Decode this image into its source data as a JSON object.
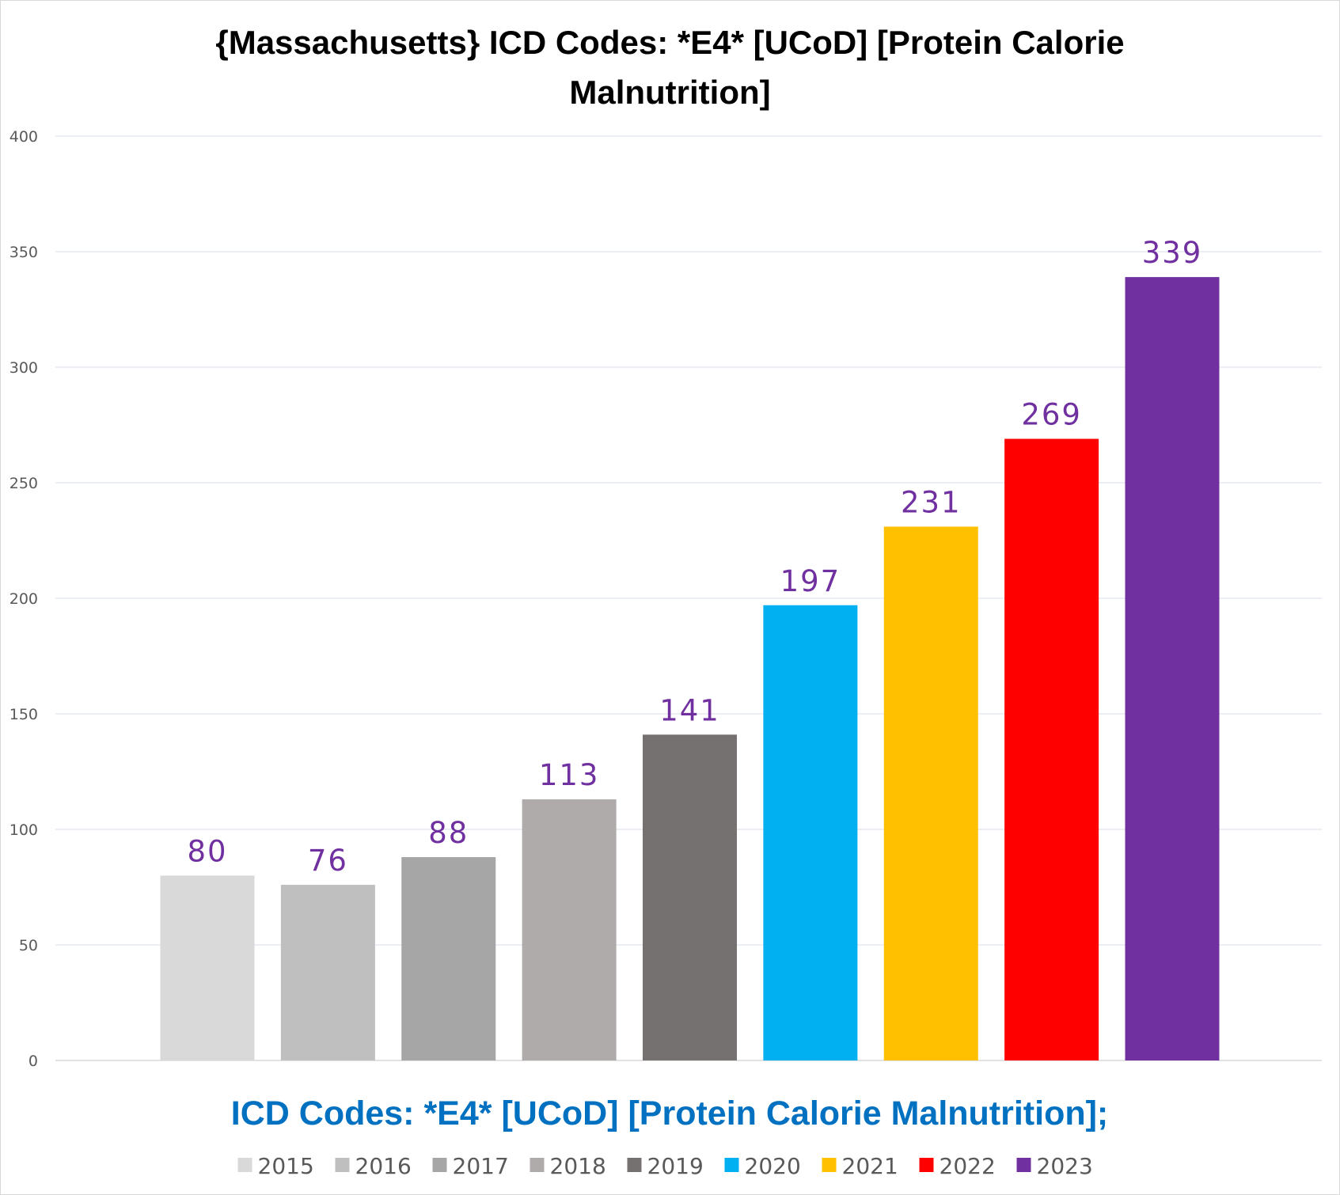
{
  "chart_data": {
    "type": "bar",
    "title": "{Massachusetts}  ICD Codes: *E4* [UCoD] [Protein Calorie Malnutrition]",
    "xlabel": "ICD Codes: *E4* [UCoD] [Protein Calorie Malnutrition];",
    "ylabel": "",
    "ylim": [
      0,
      400
    ],
    "yticks": [
      0,
      50,
      100,
      150,
      200,
      250,
      300,
      350,
      400
    ],
    "grid": true,
    "legend_position": "bottom",
    "value_label_color": "#7030a0",
    "series": [
      {
        "name": "2015",
        "value": 80,
        "color": "#d9d9d9"
      },
      {
        "name": "2016",
        "value": 76,
        "color": "#bfbfbf"
      },
      {
        "name": "2017",
        "value": 88,
        "color": "#a6a6a6"
      },
      {
        "name": "2018",
        "value": 113,
        "color": "#afabab"
      },
      {
        "name": "2019",
        "value": 141,
        "color": "#767171"
      },
      {
        "name": "2020",
        "value": 197,
        "color": "#00b0f0"
      },
      {
        "name": "2021",
        "value": 231,
        "color": "#ffc000"
      },
      {
        "name": "2022",
        "value": 269,
        "color": "#ff0000"
      },
      {
        "name": "2023",
        "value": 339,
        "color": "#7030a0"
      }
    ]
  }
}
